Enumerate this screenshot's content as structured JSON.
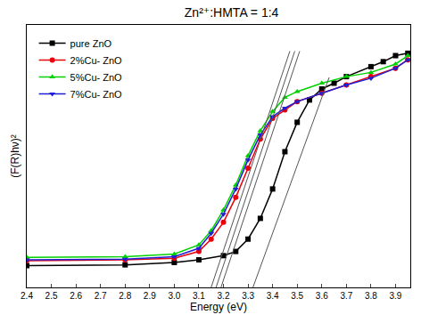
{
  "chart_data": {
    "type": "scatter",
    "title": "Zn²⁺:HMTA = 1:4",
    "x_label": "Energy (eV)",
    "y_label": "(F(R)hν)²",
    "xlim": [
      2.4,
      3.96
    ],
    "ylim": [
      0,
      100
    ],
    "xticks": [
      2.4,
      2.5,
      2.6,
      2.7,
      2.8,
      2.9,
      {
        "value": 3,
        "label": "3.0"
      },
      3.1,
      3.2,
      3.3,
      3.4,
      3.5,
      3.6,
      3.7,
      3.8,
      3.9
    ],
    "tick_labels": "x",
    "grid": false,
    "legend": "upper left",
    "series": [
      {
        "name": "pure ZnO",
        "color": "#000000",
        "marker": "square",
        "x": [
          2.4,
          2.8,
          3.0,
          3.1,
          3.2,
          3.25,
          3.3,
          3.35,
          3.4,
          3.45,
          3.5,
          3.55,
          3.6,
          3.65,
          3.7,
          3.8,
          3.85,
          3.9,
          3.95
        ],
        "values": [
          8.3,
          8.6,
          9.5,
          10.5,
          12.1,
          13.7,
          18.4,
          26.3,
          37.5,
          51.7,
          62.9,
          71.4,
          75.6,
          77.8,
          80.3,
          84.1,
          86.0,
          88.3,
          89.2
        ]
      },
      {
        "name": "2%Cu- ZnO",
        "color": "#e8000b",
        "marker": "circle",
        "x": [
          2.4,
          2.8,
          3.0,
          3.1,
          3.15,
          3.2,
          3.25,
          3.3,
          3.35,
          3.4,
          3.45,
          3.5,
          3.6,
          3.7,
          3.8,
          3.9,
          3.95
        ],
        "values": [
          10.2,
          10.5,
          11.1,
          13.7,
          18.4,
          24.8,
          34.3,
          45.4,
          56.5,
          64.4,
          67.6,
          70.8,
          74.0,
          77.1,
          80.3,
          83.5,
          86.7
        ]
      },
      {
        "name": "5%Cu- ZnO",
        "color": "#00d100",
        "marker": "triangle-up",
        "x": [
          2.4,
          2.8,
          3.0,
          3.1,
          3.15,
          3.2,
          3.25,
          3.3,
          3.35,
          3.4,
          3.45,
          3.5,
          3.6,
          3.7,
          3.8,
          3.9,
          3.95
        ],
        "values": [
          11.4,
          11.7,
          12.7,
          16.2,
          21.6,
          29.5,
          39.0,
          50.2,
          59.7,
          67.0,
          72.4,
          74.6,
          77.8,
          80.3,
          81.9,
          85.1,
          88.3
        ]
      },
      {
        "name": "7%Cu- ZnO",
        "color": "#1f1fd6",
        "marker": "triangle-down",
        "x": [
          2.4,
          2.8,
          3.0,
          3.1,
          3.15,
          3.2,
          3.25,
          3.3,
          3.35,
          3.4,
          3.45,
          3.5,
          3.6,
          3.7,
          3.8,
          3.9,
          3.95
        ],
        "values": [
          10.5,
          10.8,
          11.7,
          14.9,
          20.6,
          27.9,
          37.5,
          48.6,
          58.1,
          65.1,
          68.3,
          70.8,
          74.0,
          77.1,
          79.7,
          83.5,
          86.7
        ]
      },
      {
        "type": "line",
        "color": "#555555",
        "line_style": "solid",
        "x": [
          3.15,
          3.47
        ],
        "values": [
          0,
          90
        ]
      },
      {
        "type": "line",
        "color": "#555555",
        "line_style": "solid",
        "x": [
          3.17,
          3.49
        ],
        "values": [
          0,
          90
        ]
      },
      {
        "type": "line",
        "color": "#555555",
        "line_style": "solid",
        "x": [
          3.19,
          3.51
        ],
        "values": [
          0,
          90
        ]
      },
      {
        "type": "line",
        "color": "#555555",
        "line_style": "solid",
        "x": [
          3.32,
          3.63
        ],
        "values": [
          0,
          80
        ]
      }
    ]
  }
}
